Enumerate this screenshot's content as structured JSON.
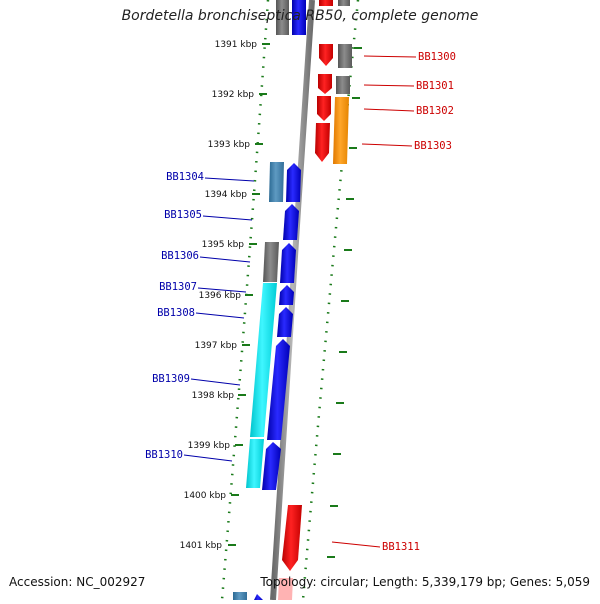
{
  "title": "Bordetella bronchiseptica RB50, complete genome",
  "accession": "Accession: NC_002927",
  "summary": "Topology: circular; Length: 5,339,179 bp; Genes: 5,059",
  "colors": {
    "backbone": "#8a8a8a",
    "tick": "#1a7a1a",
    "forward_gene": "#ee0000",
    "reverse_gene": "#0000dd",
    "forward_label": "#cc0000",
    "reverse_label": "#0000aa",
    "grey_feature": "#6e6e6e",
    "orange_feature": "#ff9900",
    "cyan_feature": "#00e5ee",
    "steel_feature": "#3f7fa8"
  },
  "scale_labels": [
    "1391 kbp",
    "1392 kbp",
    "1393 kbp",
    "1394 kbp",
    "1395 kbp",
    "1396 kbp",
    "1397 kbp",
    "1398 kbp",
    "1399 kbp",
    "1400 kbp",
    "1401 kbp"
  ],
  "forward_genes": [
    "BB1300",
    "BB1301",
    "BB1302",
    "BB1303",
    "BB1311"
  ],
  "reverse_genes": [
    "BB1304",
    "BB1305",
    "BB1306",
    "BB1307",
    "BB1308",
    "BB1309",
    "BB1310"
  ]
}
